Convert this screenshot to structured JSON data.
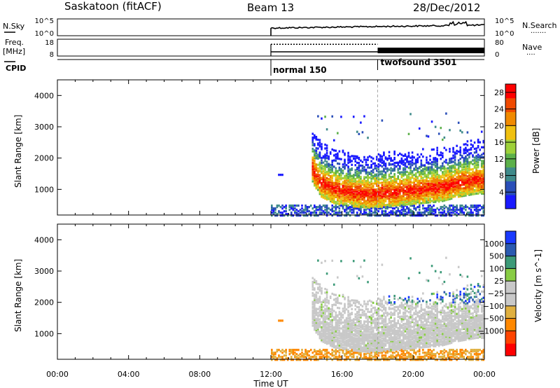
{
  "header": {
    "station": "Saskatoon (fitACF)",
    "beam": "Beam 13",
    "date": "28/Dec/2012"
  },
  "ancillary": {
    "nsky": {
      "label": "N.Sky",
      "ticks_left": [
        "10^5",
        "10^0"
      ],
      "ticks_right": [
        "10^5",
        "10^0"
      ],
      "right_label": "N.Search",
      "right_legend": "......."
    },
    "freq": {
      "label_line1": "Freq.",
      "label_line2": "[MHz]",
      "ticks_left": [
        "18",
        "8"
      ],
      "ticks_right": [
        "80",
        "0"
      ],
      "right_label": "Nave",
      "right_legend": "....",
      "freq_level_normal": 10.5,
      "freq_level_twofsound": 10.5,
      "nave_level_normal": 56,
      "nave_level_twofsound": 30
    },
    "cpid": {
      "label": "CPID",
      "modes": [
        {
          "name": "normal 150",
          "start": 12.0
        },
        {
          "name": "twofsound 3501",
          "start": 18.0
        }
      ]
    }
  },
  "colors": {
    "power_scale": [
      "#1a1aff",
      "#2a4fb8",
      "#3f8a8a",
      "#5cb04a",
      "#9ed13a",
      "#f0c010",
      "#f08a00",
      "#f04a00",
      "#ff0000"
    ],
    "velocity_scale": [
      "#ff0000",
      "#ff4400",
      "#ff8800",
      "#e0b040",
      "#c8c8c8",
      "#c8c8c8",
      "#88cc44",
      "#3c9a78",
      "#2a5ab0",
      "#1a3aff"
    ],
    "ground_scatter": "#c8c8c8"
  },
  "chart_data": [
    {
      "type": "heatmap",
      "title": "",
      "xlabel": "",
      "ylabel": "Slant Range [km]",
      "xlim": [
        0,
        24
      ],
      "ylim": [
        180,
        4500
      ],
      "x_ticks": [
        "00:00",
        "04:00",
        "08:00",
        "12:00",
        "16:00",
        "20:00",
        "00:00"
      ],
      "y_ticks": [
        1000,
        2000,
        3000,
        4000
      ],
      "colorbar_label": "Power [dB]",
      "colorbar_ticks": [
        4,
        8,
        12,
        16,
        20,
        24,
        28
      ],
      "colorbar_range": [
        0,
        30
      ],
      "data_start_time": 12.0,
      "strong_echo_band_center_km": [
        [
          14.3,
          1700
        ],
        [
          14.8,
          1250
        ],
        [
          15.5,
          1050
        ],
        [
          16.5,
          950
        ],
        [
          17.5,
          900
        ],
        [
          18.5,
          950
        ],
        [
          19.5,
          1000
        ],
        [
          20.5,
          1050
        ],
        [
          21.5,
          1100
        ],
        [
          22.5,
          1250
        ],
        [
          23.5,
          1350
        ]
      ]
    },
    {
      "type": "heatmap",
      "title": "",
      "xlabel": "Time UT",
      "ylabel": "Slant Range [km]",
      "xlim": [
        0,
        24
      ],
      "ylim": [
        180,
        4500
      ],
      "x_ticks": [
        "00:00",
        "04:00",
        "08:00",
        "12:00",
        "16:00",
        "20:00",
        "00:00"
      ],
      "y_ticks": [
        1000,
        2000,
        3000,
        4000
      ],
      "colorbar_label": "Velocity [m s^-1]",
      "colorbar_ticks": [
        "1000",
        "500",
        "100",
        "25",
        "−25",
        "−100",
        "−500",
        "−1000"
      ],
      "data_start_time": 12.0,
      "ground_scatter_region_km": [
        900,
        2200
      ]
    }
  ]
}
